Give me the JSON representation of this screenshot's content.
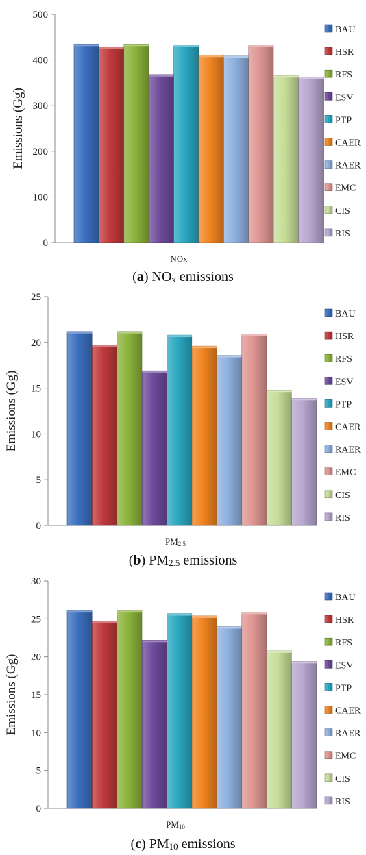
{
  "colors": {
    "BAU": "#3a6fbf",
    "HSR": "#c0393b",
    "RFS": "#8bb33a",
    "ESV": "#6e4a9c",
    "PTP": "#2aa7c0",
    "CAER": "#f08420",
    "RAER": "#8eb0de",
    "EMC": "#df9592",
    "CIS": "#c6dd98",
    "RIS": "#b7a6cf"
  },
  "chart_data": [
    {
      "type": "bar",
      "panel": "a",
      "caption_letter": "a",
      "caption_main": "NO",
      "caption_sub": "x",
      "caption_suffix": " emissions",
      "ylabel": "Emissions (Gg)",
      "xlabel_main": "NOx",
      "xlabel_sub": "",
      "ylim": [
        0,
        500
      ],
      "yticks": [
        0,
        100,
        200,
        300,
        400,
        500
      ],
      "series": [
        {
          "name": "BAU",
          "value": 435
        },
        {
          "name": "HSR",
          "value": 428
        },
        {
          "name": "RFS",
          "value": 435
        },
        {
          "name": "ESV",
          "value": 368
        },
        {
          "name": "PTP",
          "value": 433
        },
        {
          "name": "CAER",
          "value": 411
        },
        {
          "name": "RAER",
          "value": 409
        },
        {
          "name": "EMC",
          "value": 433
        },
        {
          "name": "CIS",
          "value": 366
        },
        {
          "name": "RIS",
          "value": 363
        }
      ]
    },
    {
      "type": "bar",
      "panel": "b",
      "caption_letter": "b",
      "caption_main": "PM",
      "caption_sub": "2.5",
      "caption_suffix": " emissions",
      "ylabel": "Emissions (Gg)",
      "xlabel_main": "PM",
      "xlabel_sub": "2.5",
      "ylim": [
        0,
        25
      ],
      "yticks": [
        0,
        5,
        10,
        15,
        20,
        25
      ],
      "series": [
        {
          "name": "BAU",
          "value": 21.2
        },
        {
          "name": "HSR",
          "value": 19.7
        },
        {
          "name": "RFS",
          "value": 21.2
        },
        {
          "name": "ESV",
          "value": 16.9
        },
        {
          "name": "PTP",
          "value": 20.8
        },
        {
          "name": "CAER",
          "value": 19.6
        },
        {
          "name": "RAER",
          "value": 18.6
        },
        {
          "name": "EMC",
          "value": 20.9
        },
        {
          "name": "CIS",
          "value": 14.8
        },
        {
          "name": "RIS",
          "value": 13.9
        }
      ]
    },
    {
      "type": "bar",
      "panel": "c",
      "caption_letter": "c",
      "caption_main": "PM",
      "caption_sub": "10",
      "caption_suffix": " emissions",
      "ylabel": "Emissions (Gg)",
      "xlabel_main": "PM",
      "xlabel_sub": "10",
      "ylim": [
        0,
        30
      ],
      "yticks": [
        0,
        5,
        10,
        15,
        20,
        25,
        30
      ],
      "series": [
        {
          "name": "BAU",
          "value": 26.1
        },
        {
          "name": "HSR",
          "value": 24.7
        },
        {
          "name": "RFS",
          "value": 26.1
        },
        {
          "name": "ESV",
          "value": 22.2
        },
        {
          "name": "PTP",
          "value": 25.7
        },
        {
          "name": "CAER",
          "value": 25.4
        },
        {
          "name": "RAER",
          "value": 24.0
        },
        {
          "name": "EMC",
          "value": 25.9
        },
        {
          "name": "CIS",
          "value": 20.8
        },
        {
          "name": "RIS",
          "value": 19.4
        }
      ]
    }
  ]
}
